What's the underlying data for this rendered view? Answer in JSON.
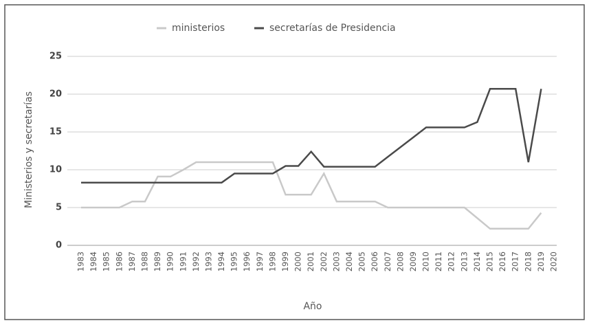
{
  "chart_data": {
    "type": "line",
    "xlabel": "Año",
    "ylabel": "Ministerios y secretarías",
    "categories": [
      "1983",
      "1984",
      "1985",
      "1986",
      "1987",
      "1988",
      "1989",
      "1990",
      "1991",
      "1992",
      "1993",
      "1994",
      "1995",
      "1996",
      "1997",
      "1998",
      "1999",
      "2000",
      "2001",
      "2002",
      "2003",
      "2004",
      "2005",
      "2006",
      "2007",
      "2008",
      "2009",
      "2010",
      "2011",
      "2012",
      "2013",
      "2014",
      "2015",
      "2016",
      "2017",
      "2018",
      "2019",
      "2020"
    ],
    "series": [
      {
        "name": "ministerios",
        "color": "#c9c9c9",
        "values": [
          5,
          5,
          5,
          5,
          5.8,
          5.8,
          9.1,
          9.1,
          10,
          11,
          11,
          11,
          11,
          11,
          11,
          11,
          6.7,
          6.7,
          6.7,
          9.5,
          5.8,
          5.8,
          5.8,
          5.8,
          5,
          5,
          5,
          5,
          5,
          5,
          5,
          3.6,
          2.2,
          2.2,
          2.2,
          2.2,
          4.3,
          null
        ]
      },
      {
        "name": "secretarías de Presidencia",
        "color": "#4a4a4a",
        "values": [
          8.3,
          8.3,
          8.3,
          8.3,
          8.3,
          8.3,
          8.3,
          8.3,
          8.3,
          8.3,
          8.3,
          8.3,
          9.5,
          9.5,
          9.5,
          9.5,
          10.5,
          10.5,
          12.4,
          10.4,
          10.4,
          10.4,
          10.4,
          10.4,
          11.7,
          13,
          14.3,
          15.6,
          15.6,
          15.6,
          15.6,
          16.3,
          20.7,
          20.7,
          20.7,
          11,
          20.7,
          null
        ]
      }
    ],
    "ylim": [
      0,
      25
    ],
    "yticks": [
      0,
      5,
      10,
      15,
      20,
      25
    ],
    "grid": true,
    "legend": "top"
  }
}
